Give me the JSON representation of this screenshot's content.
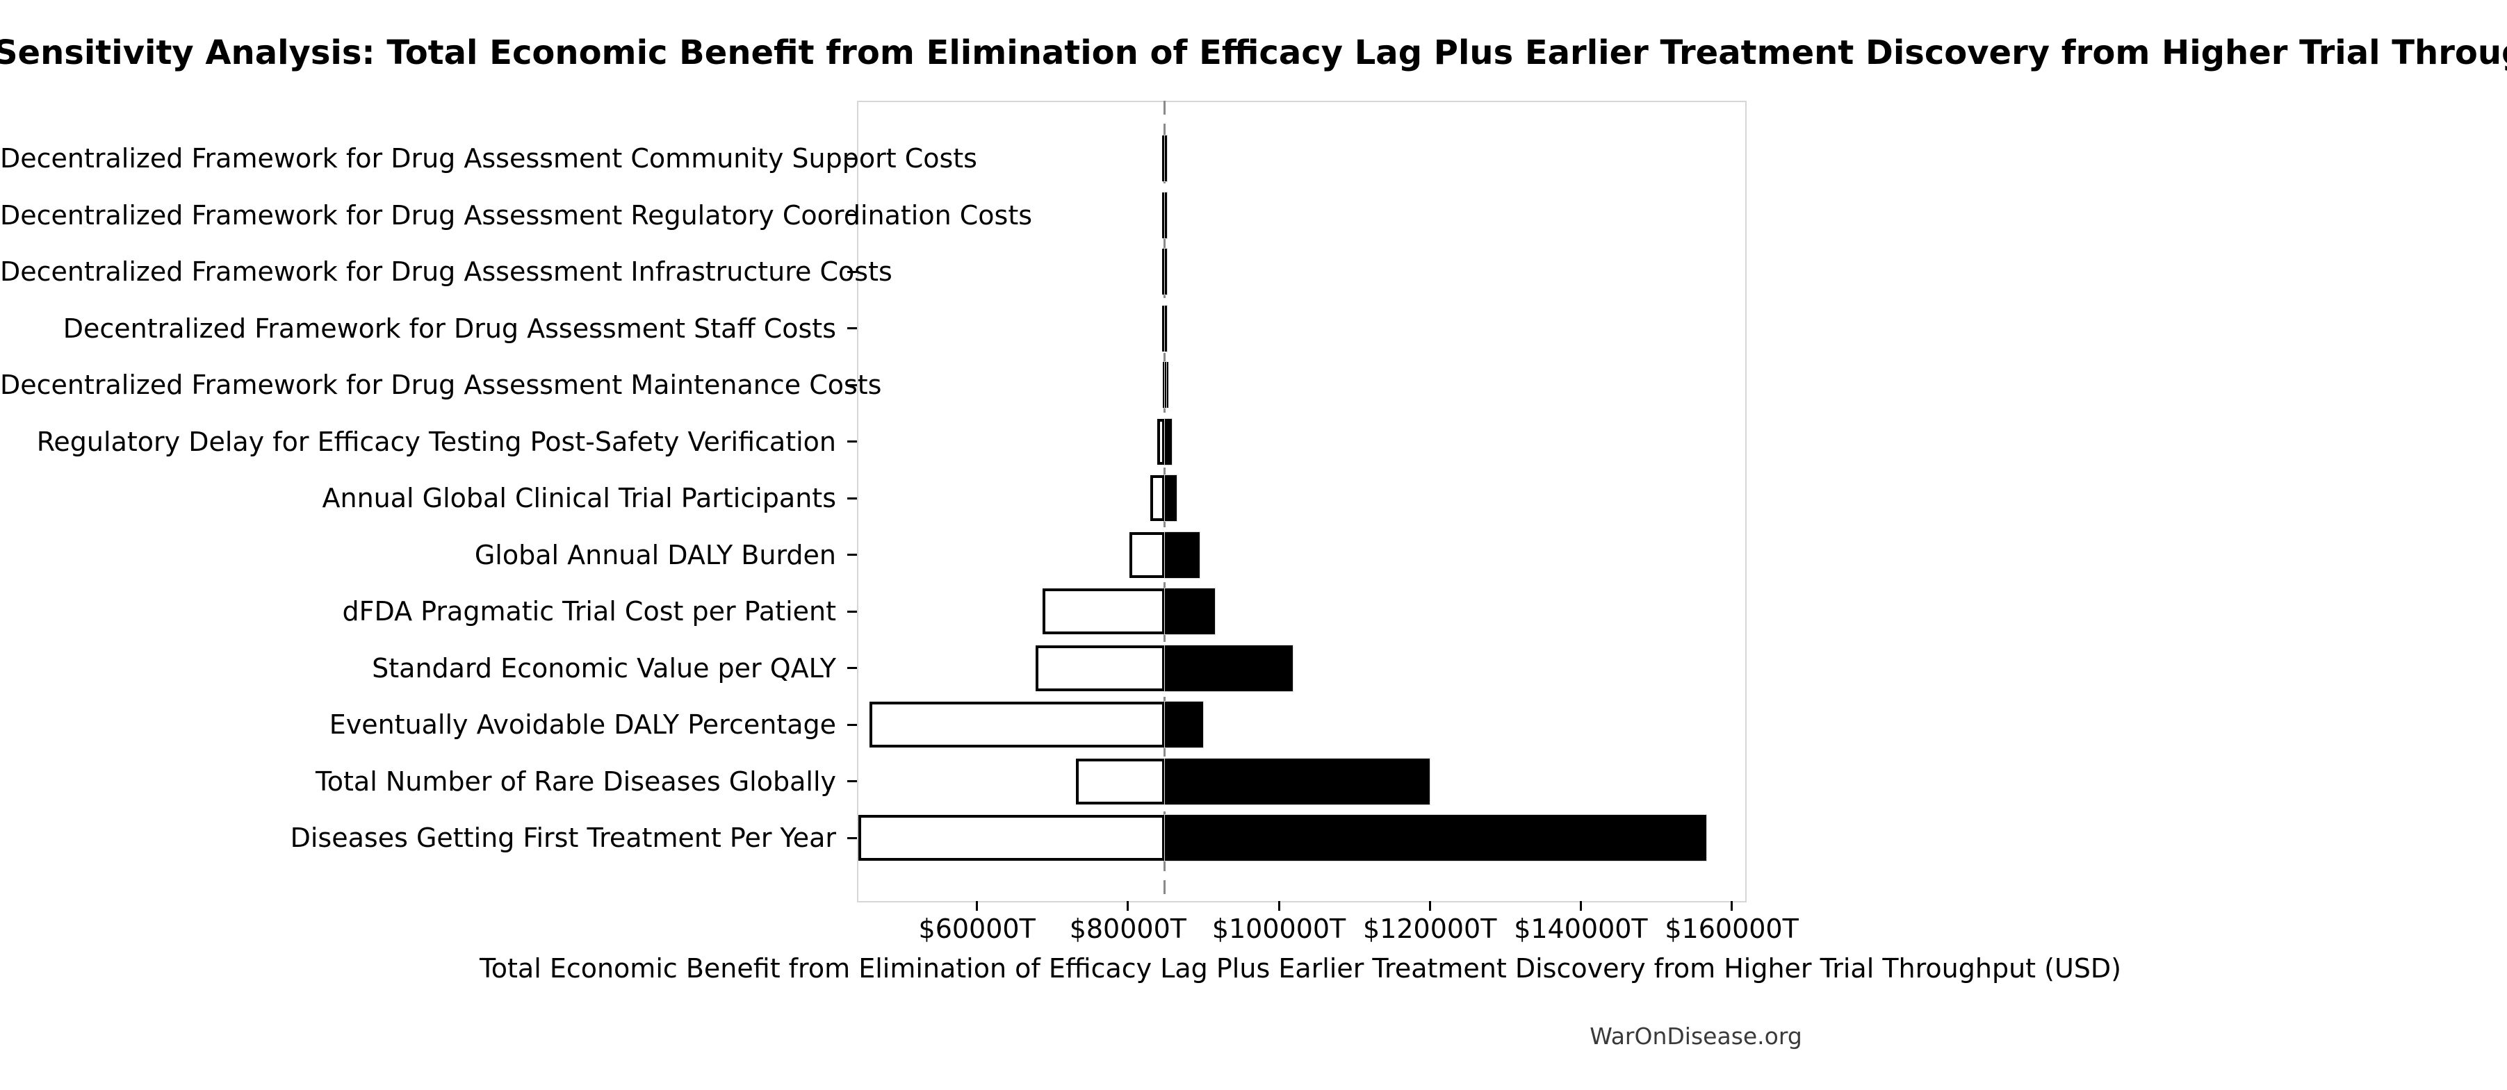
{
  "chart_data": {
    "type": "bar",
    "subtype": "tornado-sensitivity",
    "orientation": "horizontal",
    "title": "Sensitivity Analysis: Total Economic Benefit from Elimination of Efficacy Lag Plus Earlier Treatment Discovery from Higher Trial Throughput",
    "xlabel": "Total Economic Benefit from Elimination of Efficacy Lag Plus Earlier Treatment Discovery from Higher Trial Throughput (USD)",
    "footer": "WarOnDisease.org",
    "unit": "USD trillions (T)",
    "grid": false,
    "legend": null,
    "base_value": 84860,
    "base_line_style": "dashed-gray-vertical",
    "xlim": [
      44100,
      161600
    ],
    "x_ticks": [
      {
        "value": 60000,
        "label": "$60000T"
      },
      {
        "value": 80000,
        "label": "$80000T"
      },
      {
        "value": 100000,
        "label": "$100000T"
      },
      {
        "value": 120000,
        "label": "$120000T"
      },
      {
        "value": 140000,
        "label": "$140000T"
      },
      {
        "value": 160000,
        "label": "$160000T"
      }
    ],
    "rows": [
      {
        "label": "Decentralized Framework for Drug Assessment Community Support Costs",
        "low": 84500,
        "high": 85200
      },
      {
        "label": "Decentralized Framework for Drug Assessment Regulatory Coordination Costs",
        "low": 84500,
        "high": 85200
      },
      {
        "label": "Decentralized Framework for Drug Assessment Infrastructure Costs",
        "low": 84550,
        "high": 85150
      },
      {
        "label": "Decentralized Framework for Drug Assessment Staff Costs",
        "low": 84550,
        "high": 85150
      },
      {
        "label": "Decentralized Framework for Drug Assessment Maintenance Costs",
        "low": 84600,
        "high": 85100
      },
      {
        "label": "Regulatory Delay for Efficacy Testing Post-Safety Verification",
        "low": 83900,
        "high": 85800
      },
      {
        "label": "Annual Global Clinical Trial Participants",
        "low": 83000,
        "high": 86500
      },
      {
        "label": "Global Annual DALY Burden",
        "low": 80200,
        "high": 89500
      },
      {
        "label": "dFDA Pragmatic Trial Cost per Patient",
        "low": 68700,
        "high": 91500
      },
      {
        "label": "Standard Economic Value per QALY",
        "low": 67800,
        "high": 101800
      },
      {
        "label": "Eventually Avoidable DALY Percentage",
        "low": 45800,
        "high": 90000
      },
      {
        "label": "Total Number of Rare Diseases Globally",
        "low": 73100,
        "high": 120000
      },
      {
        "label": "Diseases Getting First Treatment Per Year",
        "low": 44300,
        "high": 156600
      }
    ],
    "colors": {
      "low_bar_fill": "#ffffff",
      "low_bar_edge": "#000000",
      "high_bar_fill": "#000000",
      "baseline": "#8a8a8a",
      "spine": "#d6d6d6",
      "text": "#000000",
      "footer_text": "#3a3a3a",
      "background": "#ffffff"
    }
  }
}
